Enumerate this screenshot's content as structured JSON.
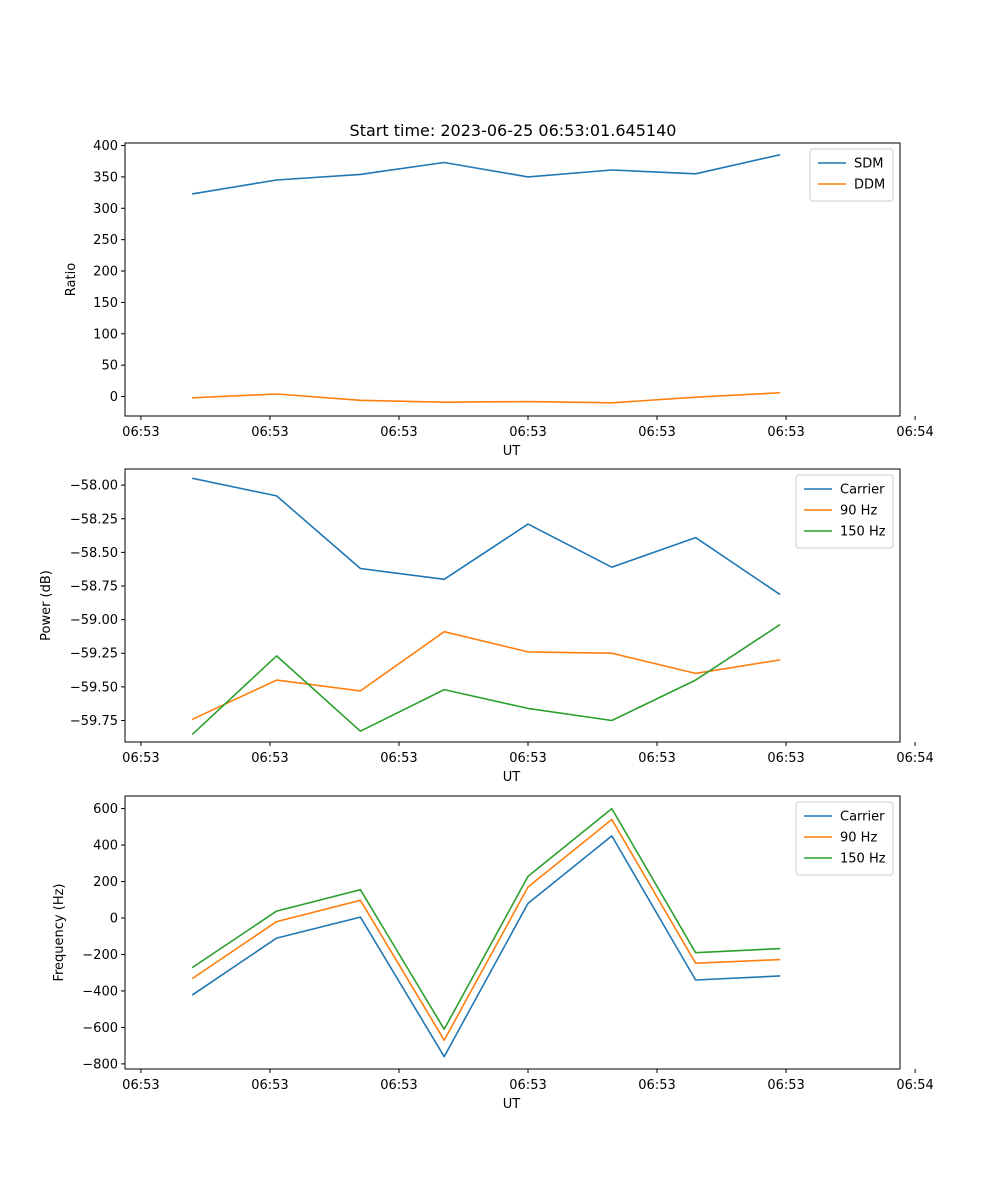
{
  "title": "Start time: 2023-06-25 06:53:01.645140",
  "colors": {
    "blue": "#1f77b4",
    "orange": "#ff7f0e",
    "green": "#2ca02c"
  },
  "chart_data": [
    {
      "type": "line",
      "title": "Start time: 2023-06-25 06:53:01.645140",
      "xlabel": "UT",
      "ylabel": "Ratio",
      "x": [
        1,
        2,
        3,
        4,
        5,
        6,
        7,
        8
      ],
      "xlim": [
        0.19,
        9.44
      ],
      "x_ticks": [
        0.38,
        1.92,
        3.46,
        5.0,
        6.54,
        8.08,
        9.62
      ],
      "x_tick_labels": [
        "06:53",
        "06:53",
        "06:53",
        "06:53",
        "06:53",
        "06:53",
        "06:54"
      ],
      "ylim": [
        -31,
        404
      ],
      "y_ticks": [
        0,
        50,
        100,
        150,
        200,
        250,
        300,
        350,
        400
      ],
      "y_tick_labels": [
        "0",
        "50",
        "100",
        "150",
        "200",
        "250",
        "300",
        "350",
        "400"
      ],
      "legend_position": "top-right",
      "grid": false,
      "series": [
        {
          "name": "SDM",
          "color": "#1f77b4",
          "values": [
            323,
            345,
            354,
            373,
            350,
            361,
            355,
            385
          ]
        },
        {
          "name": "DDM",
          "color": "#ff7f0e",
          "values": [
            -2,
            4,
            -6,
            -9,
            -8,
            -10,
            -1,
            6
          ]
        }
      ]
    },
    {
      "type": "line",
      "title": "",
      "xlabel": "UT",
      "ylabel": "Power (dB)",
      "x": [
        1,
        2,
        3,
        4,
        5,
        6,
        7,
        8
      ],
      "xlim": [
        0.19,
        9.44
      ],
      "x_ticks": [
        0.38,
        1.92,
        3.46,
        5.0,
        6.54,
        8.08,
        9.62
      ],
      "x_tick_labels": [
        "06:53",
        "06:53",
        "06:53",
        "06:53",
        "06:53",
        "06:53",
        "06:54"
      ],
      "ylim": [
        -59.91,
        -57.88
      ],
      "y_ticks": [
        -58.0,
        -58.25,
        -58.5,
        -58.75,
        -59.0,
        -59.25,
        -59.5,
        -59.75
      ],
      "y_tick_labels": [
        "−58.00",
        "−58.25",
        "−58.50",
        "−58.75",
        "−59.00",
        "−59.25",
        "−59.50",
        "−59.75"
      ],
      "legend_position": "top-right",
      "grid": false,
      "series": [
        {
          "name": "Carrier",
          "color": "#1f77b4",
          "values": [
            -57.95,
            -58.08,
            -58.62,
            -58.7,
            -58.29,
            -58.61,
            -58.39,
            -58.81
          ]
        },
        {
          "name": "90 Hz",
          "color": "#ff7f0e",
          "values": [
            -59.74,
            -59.45,
            -59.53,
            -59.09,
            -59.24,
            -59.25,
            -59.4,
            -59.3
          ]
        },
        {
          "name": "150 Hz",
          "color": "#2ca02c",
          "values": [
            -59.85,
            -59.27,
            -59.83,
            -59.52,
            -59.66,
            -59.75,
            -59.45,
            -59.04
          ]
        }
      ]
    },
    {
      "type": "line",
      "title": "",
      "xlabel": "UT",
      "ylabel": "Frequency (Hz)",
      "x": [
        1,
        2,
        3,
        4,
        5,
        6,
        7,
        8
      ],
      "xlim": [
        0.19,
        9.44
      ],
      "x_ticks": [
        0.38,
        1.92,
        3.46,
        5.0,
        6.54,
        8.08,
        9.62
      ],
      "x_tick_labels": [
        "06:53",
        "06:53",
        "06:53",
        "06:53",
        "06:53",
        "06:53",
        "06:54"
      ],
      "ylim": [
        -828,
        669
      ],
      "y_ticks": [
        600,
        400,
        200,
        0,
        -200,
        -400,
        -600,
        -800
      ],
      "y_tick_labels": [
        "600",
        "400",
        "200",
        "0",
        "−200",
        "−400",
        "−600",
        "−800"
      ],
      "legend_position": "top-right",
      "grid": false,
      "series": [
        {
          "name": "Carrier",
          "color": "#1f77b4",
          "values": [
            -420,
            -110,
            5,
            -760,
            80,
            450,
            -340,
            -318
          ]
        },
        {
          "name": "90 Hz",
          "color": "#ff7f0e",
          "values": [
            -330,
            -20,
            97,
            -670,
            170,
            540,
            -248,
            -228
          ]
        },
        {
          "name": "150 Hz",
          "color": "#2ca02c",
          "values": [
            -270,
            38,
            155,
            -610,
            228,
            600,
            -190,
            -168
          ]
        }
      ]
    }
  ]
}
